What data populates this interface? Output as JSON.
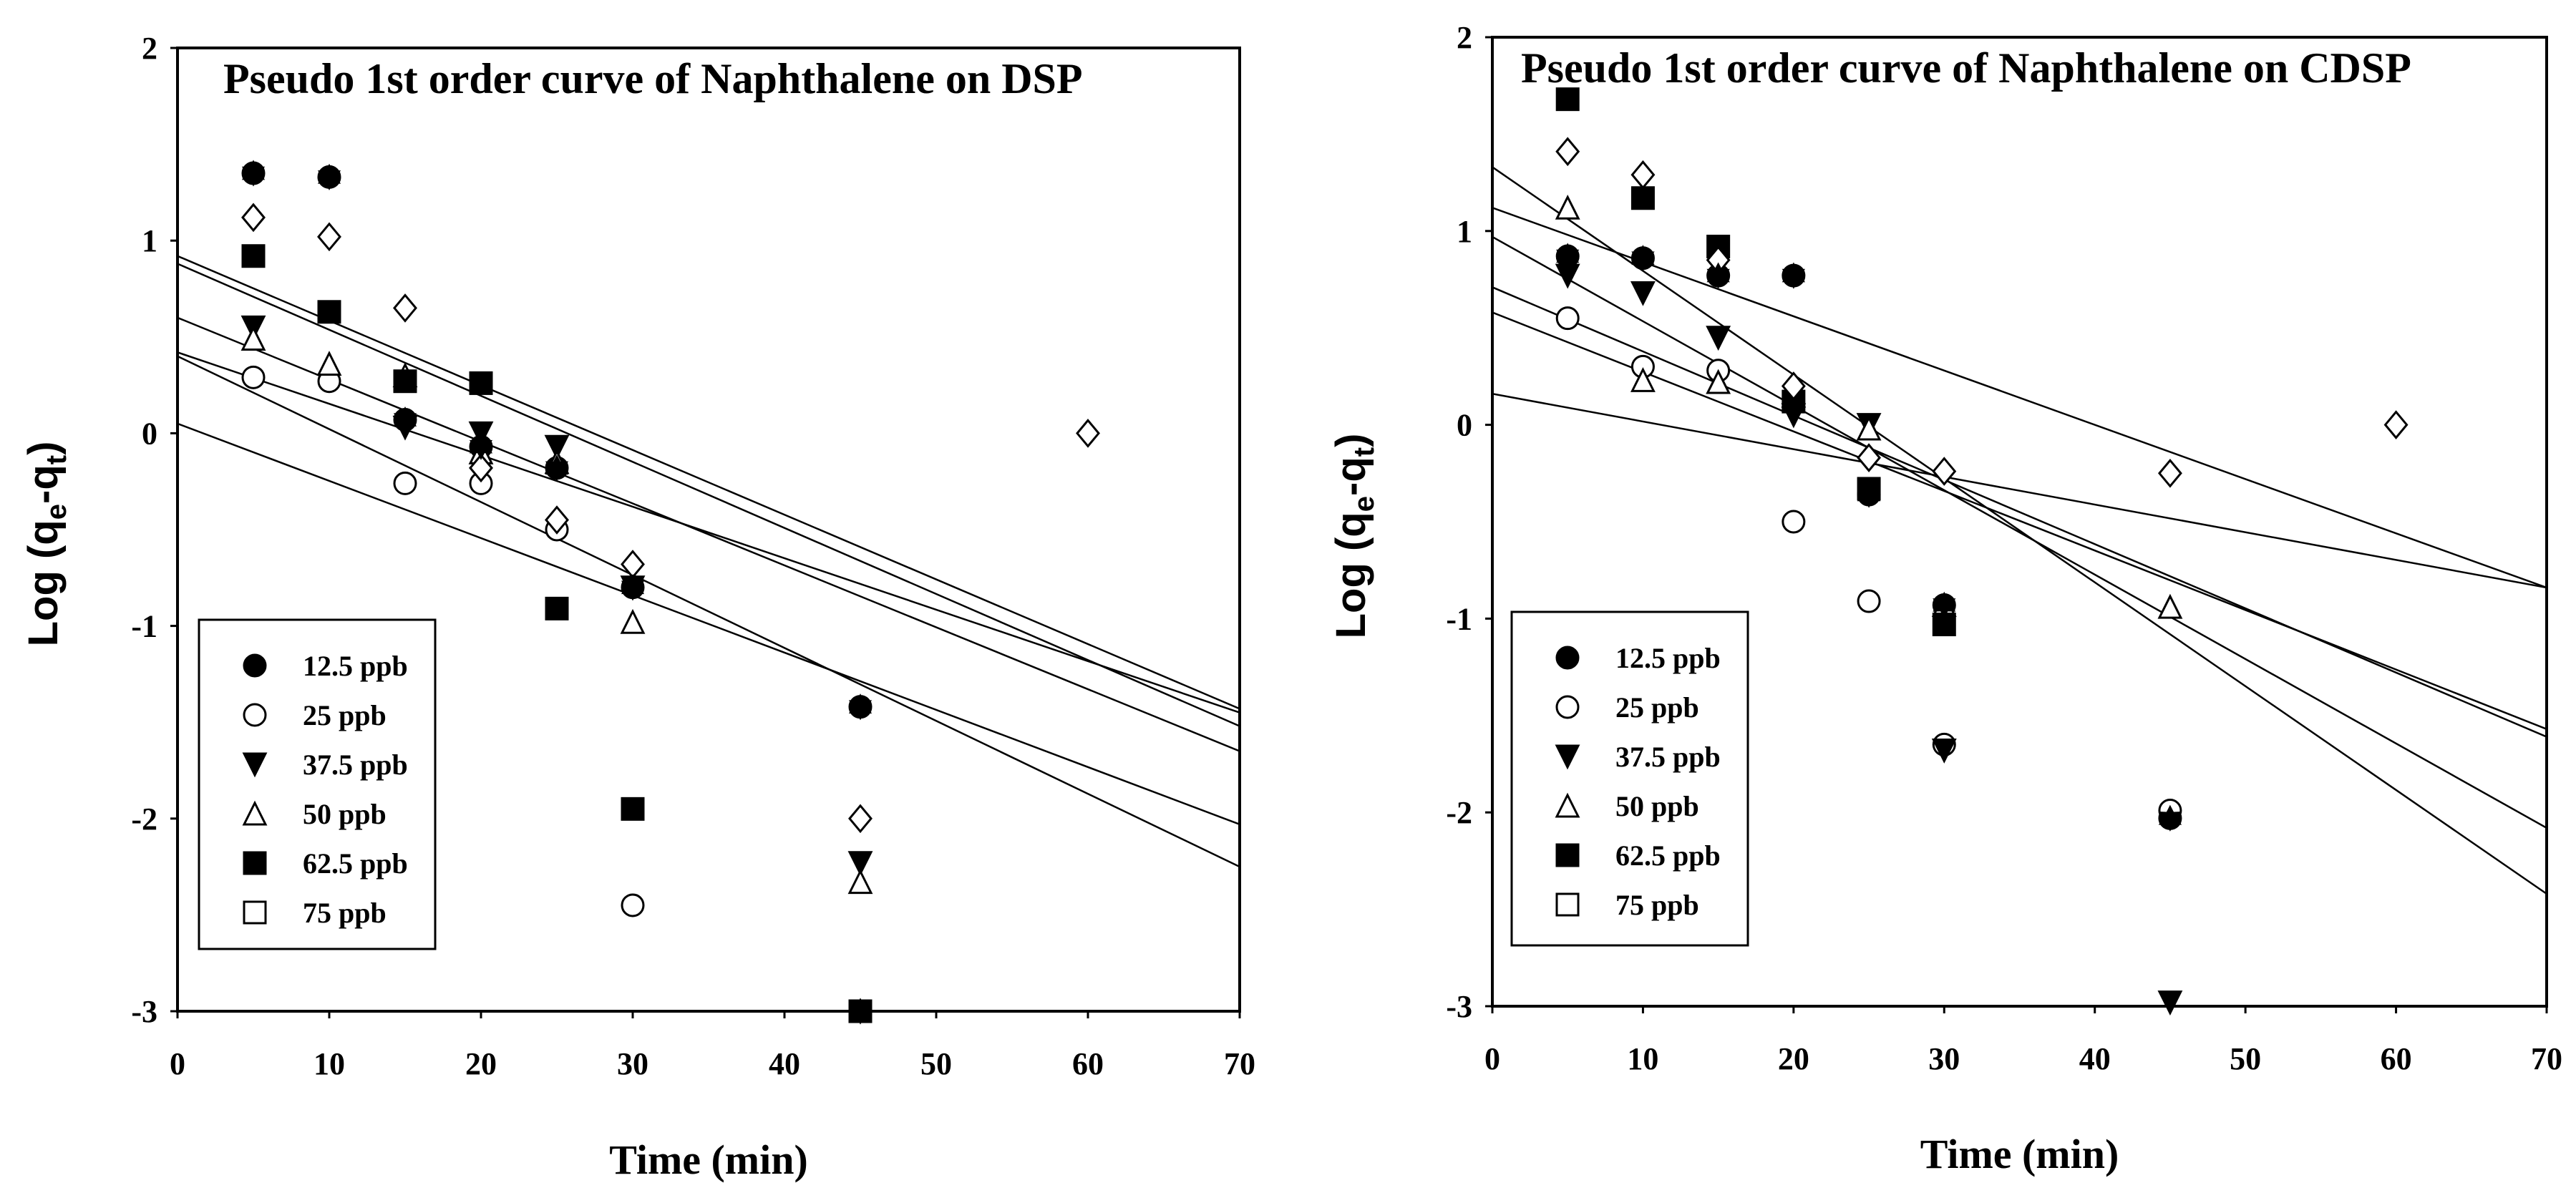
{
  "chart_data": [
    {
      "type": "scatter",
      "title": "Pseudo 1st order curve of Naphthalene on DSP",
      "xlabel": "Time (min)",
      "ylabel": {
        "main": "Log (q",
        "sub1": "e",
        "mid": "-q",
        "sub2": "t",
        "end": ")"
      },
      "xlim": [
        0,
        70
      ],
      "ylim": [
        -3,
        2
      ],
      "xticks": [
        "0",
        "10",
        "20",
        "30",
        "40",
        "50",
        "60",
        "70"
      ],
      "yticks": [
        "-3",
        "-2",
        "-1",
        "0",
        "1",
        "2"
      ],
      "legend_position": "lower-left",
      "series": [
        {
          "name": "12.5 ppb",
          "marker": "circle-filled",
          "points": [
            [
              5,
              1.35
            ],
            [
              10,
              1.33
            ],
            [
              15,
              0.07
            ],
            [
              20,
              -0.07
            ],
            [
              25,
              -0.18
            ],
            [
              30,
              -0.8
            ],
            [
              45,
              -1.42
            ],
            [
              45,
              -3.0
            ]
          ]
        },
        {
          "name": "25 ppb",
          "marker": "circle-open",
          "points": [
            [
              5,
              0.29
            ],
            [
              10,
              0.27
            ],
            [
              15,
              -0.26
            ],
            [
              20,
              -0.26
            ],
            [
              25,
              -0.5
            ],
            [
              30,
              -2.45
            ],
            [
              45,
              -3.0
            ]
          ]
        },
        {
          "name": "37.5 ppb",
          "marker": "triangle-down-filled",
          "points": [
            [
              5,
              0.55
            ],
            [
              15,
              0.03
            ],
            [
              20,
              0.0
            ],
            [
              25,
              -0.07
            ],
            [
              30,
              -0.8
            ],
            [
              45,
              -2.23
            ]
          ]
        },
        {
          "name": "50 ppb",
          "marker": "triangle-up-open",
          "points": [
            [
              5,
              0.49
            ],
            [
              10,
              0.36
            ],
            [
              15,
              0.3
            ],
            [
              20,
              -0.1
            ],
            [
              25,
              -0.15
            ],
            [
              30,
              -0.98
            ],
            [
              45,
              -2.33
            ]
          ]
        },
        {
          "name": "62.5 ppb",
          "marker": "square-filled",
          "points": [
            [
              5,
              0.92
            ],
            [
              10,
              0.63
            ],
            [
              15,
              0.27
            ],
            [
              20,
              0.26
            ],
            [
              25,
              -0.91
            ],
            [
              30,
              -1.95
            ],
            [
              45,
              -3.0
            ]
          ]
        },
        {
          "name": "75 ppb",
          "marker": "diamond-open",
          "points": [
            [
              5,
              1.12
            ],
            [
              10,
              1.02
            ],
            [
              15,
              0.65
            ],
            [
              20,
              -0.18
            ],
            [
              25,
              -0.45
            ],
            [
              30,
              -0.68
            ],
            [
              45,
              -2.0
            ],
            [
              60,
              0.0
            ]
          ]
        },
        {
          "name": "",
          "marker": "star-filled",
          "points": [
            [
              5,
              1.35
            ],
            [
              10,
              1.33
            ],
            [
              15,
              0.07
            ],
            [
              20,
              -0.07
            ],
            [
              25,
              -0.18
            ],
            [
              30,
              -0.8
            ],
            [
              45,
              -1.42
            ],
            [
              45,
              -3.0
            ]
          ]
        }
      ],
      "fit_lines": [
        {
          "x": [
            0,
            70
          ],
          "y": [
            0.92,
            -1.43
          ]
        },
        {
          "x": [
            0,
            70
          ],
          "y": [
            0.88,
            -1.52
          ]
        },
        {
          "x": [
            0,
            70
          ],
          "y": [
            0.6,
            -1.65
          ]
        },
        {
          "x": [
            0,
            70
          ],
          "y": [
            0.42,
            -1.45
          ]
        },
        {
          "x": [
            0,
            70
          ],
          "y": [
            0.4,
            -2.25
          ]
        },
        {
          "x": [
            0,
            70
          ],
          "y": [
            0.05,
            -2.03
          ]
        }
      ]
    },
    {
      "type": "scatter",
      "title": "Pseudo 1st order curve of Naphthalene on CDSP",
      "xlabel": "Time (min)",
      "ylabel": {
        "main": "Log (q",
        "sub1": "e",
        "mid": "-q",
        "sub2": "t",
        "end": ")"
      },
      "xlim": [
        0,
        70
      ],
      "ylim": [
        -3,
        2
      ],
      "xticks": [
        "0",
        "10",
        "20",
        "30",
        "40",
        "50",
        "60",
        "70"
      ],
      "yticks": [
        "-3",
        "-2",
        "-1",
        "0",
        "1",
        "2"
      ],
      "legend_position": "lower-left",
      "series": [
        {
          "name": "12.5 ppb",
          "marker": "circle-filled",
          "points": [
            [
              5,
              0.87
            ],
            [
              10,
              0.86
            ],
            [
              15,
              0.77
            ],
            [
              20,
              0.77
            ],
            [
              25,
              -0.36
            ],
            [
              30,
              -0.93
            ],
            [
              45,
              -2.03
            ]
          ]
        },
        {
          "name": "25 ppb",
          "marker": "circle-open",
          "points": [
            [
              5,
              0.55
            ],
            [
              10,
              0.3
            ],
            [
              15,
              0.28
            ],
            [
              20,
              -0.5
            ],
            [
              25,
              -0.91
            ],
            [
              30,
              -1.65
            ],
            [
              45,
              -1.99
            ]
          ]
        },
        {
          "name": "37.5 ppb",
          "marker": "triangle-down-filled",
          "points": [
            [
              5,
              0.77
            ],
            [
              10,
              0.68
            ],
            [
              15,
              0.45
            ],
            [
              20,
              0.05
            ],
            [
              25,
              0.0
            ],
            [
              30,
              -1.68
            ],
            [
              45,
              -2.98
            ]
          ]
        },
        {
          "name": "50 ppb",
          "marker": "triangle-up-open",
          "points": [
            [
              5,
              1.12
            ],
            [
              10,
              0.23
            ],
            [
              15,
              0.22
            ],
            [
              20,
              0.15
            ],
            [
              25,
              -0.02
            ],
            [
              30,
              -0.93
            ],
            [
              45,
              -0.94
            ]
          ]
        },
        {
          "name": "62.5 ppb",
          "marker": "square-filled",
          "points": [
            [
              5,
              1.68
            ],
            [
              10,
              1.17
            ],
            [
              15,
              0.92
            ],
            [
              20,
              0.12
            ],
            [
              25,
              -0.33
            ],
            [
              30,
              -1.03
            ]
          ]
        },
        {
          "name": "75 ppb",
          "marker": "diamond-open",
          "points": [
            [
              5,
              1.41
            ],
            [
              10,
              1.29
            ],
            [
              15,
              0.85
            ],
            [
              20,
              0.2
            ],
            [
              25,
              -0.17
            ],
            [
              30,
              -0.24
            ],
            [
              45,
              -0.25
            ],
            [
              60,
              0.0
            ]
          ]
        },
        {
          "name": "",
          "marker": "star-filled",
          "points": [
            [
              5,
              0.87
            ],
            [
              10,
              0.86
            ],
            [
              15,
              0.77
            ],
            [
              20,
              0.77
            ],
            [
              25,
              -0.36
            ],
            [
              30,
              -0.93
            ],
            [
              45,
              -2.03
            ]
          ]
        }
      ],
      "fit_lines": [
        {
          "x": [
            0,
            70
          ],
          "y": [
            1.33,
            -2.42
          ]
        },
        {
          "x": [
            0,
            70
          ],
          "y": [
            1.12,
            -0.84
          ]
        },
        {
          "x": [
            0,
            70
          ],
          "y": [
            0.97,
            -2.08
          ]
        },
        {
          "x": [
            0,
            70
          ],
          "y": [
            0.71,
            -1.61
          ]
        },
        {
          "x": [
            0,
            70
          ],
          "y": [
            0.58,
            -1.57
          ]
        },
        {
          "x": [
            0,
            70
          ],
          "y": [
            0.16,
            -0.84
          ]
        }
      ]
    }
  ]
}
